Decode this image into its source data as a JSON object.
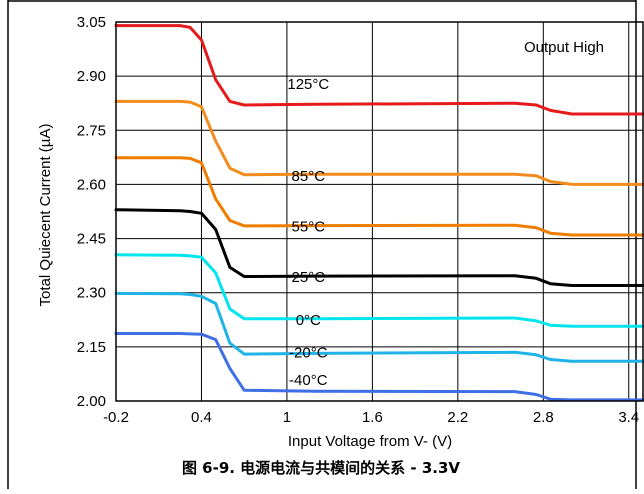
{
  "chart_data": {
    "type": "line",
    "caption": "图 6-9. 电源电流与共模间的关系 - 3.3V",
    "xlabel": "Input Voltage from V- (V)",
    "ylabel": "Total Quiecent Current (µA)",
    "annotation": "Output High",
    "xlim": [
      -0.2,
      3.5
    ],
    "ylim": [
      2.0,
      3.05
    ],
    "xticks": [
      {
        "value": -0.2,
        "label": "-0.2"
      },
      {
        "value": 0.4,
        "label": "0.4"
      },
      {
        "value": 1.0,
        "label": "1"
      },
      {
        "value": 1.6,
        "label": "1.6"
      },
      {
        "value": 2.2,
        "label": "2.2"
      },
      {
        "value": 2.8,
        "label": "2.8"
      },
      {
        "value": 3.4,
        "label": "3.4"
      }
    ],
    "yticks": [
      {
        "value": 2.0,
        "label": "2.00"
      },
      {
        "value": 2.15,
        "label": "2.15"
      },
      {
        "value": 2.3,
        "label": "2.30"
      },
      {
        "value": 2.45,
        "label": "2.45"
      },
      {
        "value": 2.6,
        "label": "2.60"
      },
      {
        "value": 2.75,
        "label": "2.75"
      },
      {
        "value": 2.9,
        "label": "2.90"
      },
      {
        "value": 3.05,
        "label": "3.05"
      }
    ],
    "grid": true,
    "series": [
      {
        "name": "125°C",
        "color": "#e41a1c",
        "label_pos": [
          0.42,
          2.865
        ],
        "x": [
          -0.2,
          0.25,
          0.32,
          0.4,
          0.5,
          0.6,
          0.7,
          1.2,
          2.6,
          2.75,
          2.85,
          3.0,
          3.5
        ],
        "y": [
          3.04,
          3.04,
          3.035,
          3.0,
          2.89,
          2.83,
          2.82,
          2.822,
          2.825,
          2.82,
          2.805,
          2.795,
          2.795
        ]
      },
      {
        "name": "85°C",
        "color": "#f28c1e",
        "label_pos": [
          0.42,
          2.61
        ],
        "x": [
          -0.2,
          0.25,
          0.32,
          0.4,
          0.5,
          0.6,
          0.7,
          1.2,
          2.6,
          2.75,
          2.85,
          3.0,
          3.5
        ],
        "y": [
          2.83,
          2.83,
          2.828,
          2.815,
          2.72,
          2.645,
          2.627,
          2.628,
          2.628,
          2.624,
          2.608,
          2.6,
          2.6
        ]
      },
      {
        "name": "55°C",
        "color": "#ef7d00",
        "label_pos": [
          0.42,
          2.47
        ],
        "x": [
          -0.2,
          0.25,
          0.32,
          0.4,
          0.5,
          0.6,
          0.7,
          1.2,
          2.6,
          2.75,
          2.85,
          3.0,
          3.5
        ],
        "y": [
          2.674,
          2.674,
          2.672,
          2.66,
          2.56,
          2.5,
          2.485,
          2.486,
          2.487,
          2.48,
          2.465,
          2.46,
          2.46
        ]
      },
      {
        "name": "25°C",
        "color": "#000000",
        "label_pos": [
          0.42,
          2.33
        ],
        "x": [
          -0.2,
          0.25,
          0.32,
          0.4,
          0.5,
          0.6,
          0.7,
          1.2,
          2.6,
          2.75,
          2.85,
          3.0,
          3.5
        ],
        "y": [
          2.53,
          2.527,
          2.525,
          2.52,
          2.475,
          2.37,
          2.345,
          2.346,
          2.347,
          2.34,
          2.325,
          2.32,
          2.32
        ]
      },
      {
        "name": "0°C",
        "color": "#00e5ee",
        "label_pos": [
          0.42,
          2.21
        ],
        "x": [
          -0.2,
          0.25,
          0.32,
          0.4,
          0.5,
          0.6,
          0.7,
          1.2,
          2.6,
          2.75,
          2.85,
          3.0,
          3.5
        ],
        "y": [
          2.405,
          2.404,
          2.402,
          2.398,
          2.355,
          2.255,
          2.228,
          2.228,
          2.23,
          2.222,
          2.21,
          2.207,
          2.207
        ]
      },
      {
        "name": "-20°C",
        "color": "#1fb3e8",
        "label_pos": [
          0.42,
          2.12
        ],
        "x": [
          -0.2,
          0.25,
          0.32,
          0.4,
          0.5,
          0.6,
          0.7,
          1.2,
          2.6,
          2.75,
          2.85,
          3.0,
          3.5
        ],
        "y": [
          2.298,
          2.297,
          2.295,
          2.29,
          2.27,
          2.16,
          2.13,
          2.132,
          2.135,
          2.128,
          2.115,
          2.11,
          2.11
        ]
      },
      {
        "name": "-40°C",
        "color": "#3f6fe5",
        "label_pos": [
          0.42,
          2.045
        ],
        "x": [
          -0.2,
          0.25,
          0.32,
          0.4,
          0.5,
          0.6,
          0.7,
          1.2,
          2.6,
          2.75,
          2.85,
          3.0,
          3.5
        ],
        "y": [
          2.187,
          2.187,
          2.186,
          2.185,
          2.17,
          2.09,
          2.03,
          2.027,
          2.026,
          2.018,
          2.005,
          2.003,
          2.003
        ]
      }
    ]
  }
}
